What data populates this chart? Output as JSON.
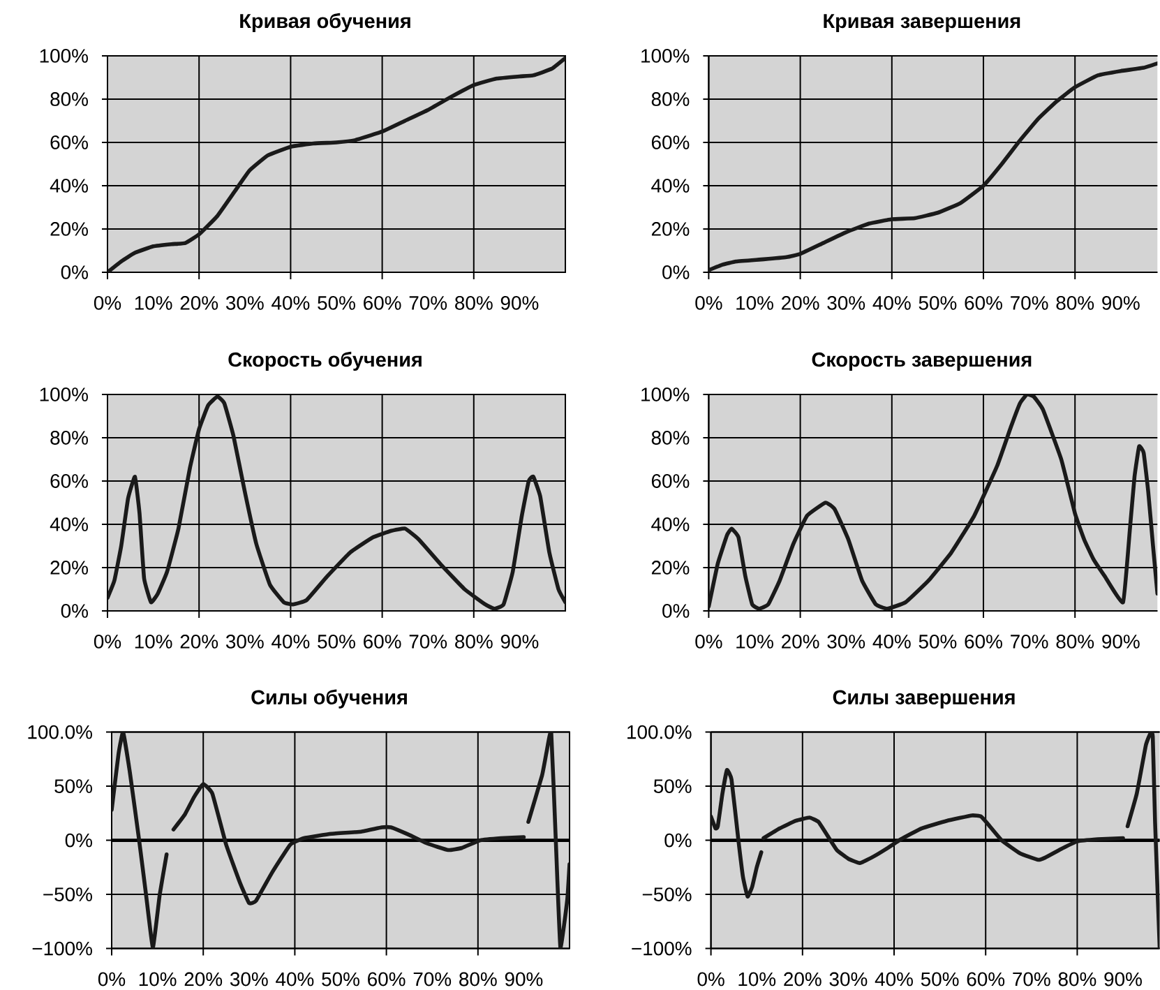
{
  "chart_data": [
    {
      "type": "line",
      "title": "Кривая обучения",
      "color": "#1a1a1a",
      "grid": true,
      "xlim": [
        0,
        100
      ],
      "ylim": [
        0,
        100
      ],
      "xticks": [
        {
          "value": 0,
          "label": "0%"
        },
        {
          "value": 10,
          "label": "10%"
        },
        {
          "value": 20,
          "label": "20%"
        },
        {
          "value": 30,
          "label": "30%"
        },
        {
          "value": 40,
          "label": "40%"
        },
        {
          "value": 50,
          "label": "50%"
        },
        {
          "value": 60,
          "label": "60%"
        },
        {
          "value": 70,
          "label": "70%"
        },
        {
          "value": 80,
          "label": "80%"
        },
        {
          "value": 90,
          "label": "90%"
        }
      ],
      "yticks": [
        {
          "value": 0,
          "label": "0%"
        },
        {
          "value": 20,
          "label": "20%"
        },
        {
          "value": 40,
          "label": "40%"
        },
        {
          "value": 60,
          "label": "60%"
        },
        {
          "value": 80,
          "label": "80%"
        },
        {
          "value": 100,
          "label": "100%"
        }
      ],
      "x": [
        0,
        3,
        6,
        10,
        14,
        17,
        20,
        24,
        28,
        31,
        35,
        40,
        45,
        50,
        54,
        60,
        65,
        70,
        75,
        80,
        85,
        90,
        93,
        97,
        100
      ],
      "values": [
        0,
        5,
        9,
        12,
        13,
        13.5,
        17.5,
        26,
        38,
        47,
        54,
        58,
        59.5,
        60,
        61,
        65,
        70,
        75,
        81,
        86.5,
        89.5,
        90.5,
        91,
        94,
        99
      ]
    },
    {
      "type": "line",
      "title": "Кривая завершения",
      "color": "#1a1a1a",
      "grid": true,
      "xlim": [
        0,
        98
      ],
      "ylim": [
        0,
        100
      ],
      "xticks": [
        {
          "value": 0,
          "label": "0%"
        },
        {
          "value": 10,
          "label": "10%"
        },
        {
          "value": 20,
          "label": "20%"
        },
        {
          "value": 30,
          "label": "30%"
        },
        {
          "value": 40,
          "label": "40%"
        },
        {
          "value": 50,
          "label": "50%"
        },
        {
          "value": 60,
          "label": "60%"
        },
        {
          "value": 70,
          "label": "70%"
        },
        {
          "value": 80,
          "label": "80%"
        },
        {
          "value": 90,
          "label": "90%"
        }
      ],
      "yticks": [
        {
          "value": 0,
          "label": "0%"
        },
        {
          "value": 20,
          "label": "20%"
        },
        {
          "value": 40,
          "label": "40%"
        },
        {
          "value": 60,
          "label": "60%"
        },
        {
          "value": 80,
          "label": "80%"
        },
        {
          "value": 100,
          "label": "100%"
        }
      ],
      "x": [
        0,
        3,
        6,
        12,
        17,
        20,
        25,
        30,
        35,
        40,
        45,
        50,
        55,
        60,
        64,
        68,
        72,
        76,
        80,
        85,
        90,
        95,
        98
      ],
      "values": [
        1,
        3.5,
        5,
        6,
        7,
        8.5,
        13.5,
        18.5,
        22.5,
        24.5,
        25,
        27.5,
        32,
        40,
        50,
        61,
        71,
        79,
        85.5,
        91,
        93,
        94.5,
        96.5
      ]
    },
    {
      "type": "line",
      "title": "Скорость обучения",
      "color": "#1a1a1a",
      "grid": true,
      "xlim": [
        0,
        100
      ],
      "ylim": [
        0,
        100
      ],
      "xticks": [
        {
          "value": 0,
          "label": "0%"
        },
        {
          "value": 10,
          "label": "10%"
        },
        {
          "value": 20,
          "label": "20%"
        },
        {
          "value": 30,
          "label": "30%"
        },
        {
          "value": 40,
          "label": "40%"
        },
        {
          "value": 50,
          "label": "50%"
        },
        {
          "value": 60,
          "label": "60%"
        },
        {
          "value": 70,
          "label": "70%"
        },
        {
          "value": 80,
          "label": "80%"
        },
        {
          "value": 90,
          "label": "90%"
        }
      ],
      "yticks": [
        {
          "value": 0,
          "label": "0%"
        },
        {
          "value": 20,
          "label": "20%"
        },
        {
          "value": 40,
          "label": "40%"
        },
        {
          "value": 60,
          "label": "60%"
        },
        {
          "value": 80,
          "label": "80%"
        },
        {
          "value": 100,
          "label": "100%"
        }
      ],
      "x": [
        0,
        1.5,
        3,
        4.5,
        6,
        7,
        8,
        9.5,
        11,
        13,
        15.5,
        18,
        20,
        22,
        24,
        25.5,
        27.5,
        30,
        32.5,
        35.5,
        38.5,
        40.5,
        43.5,
        48,
        53,
        58,
        62,
        65,
        68,
        73,
        78,
        82.5,
        84.5,
        86.5,
        88.5,
        90.5,
        92,
        93,
        94.5,
        96.5,
        98.5,
        100
      ],
      "values": [
        6,
        14,
        30,
        52,
        62,
        45,
        15,
        4,
        8,
        18,
        38,
        66,
        84,
        95,
        99,
        96,
        81,
        55,
        31,
        12,
        4,
        3,
        5,
        16,
        27,
        34,
        37,
        38,
        33,
        21,
        10,
        3,
        1,
        3,
        18,
        44,
        60,
        62,
        53,
        27,
        10,
        4
      ]
    },
    {
      "type": "line",
      "title": "Скорость завершения",
      "color": "#1a1a1a",
      "grid": true,
      "xlim": [
        0,
        98
      ],
      "ylim": [
        0,
        100
      ],
      "xticks": [
        {
          "value": 0,
          "label": "0%"
        },
        {
          "value": 10,
          "label": "10%"
        },
        {
          "value": 20,
          "label": "20%"
        },
        {
          "value": 30,
          "label": "30%"
        },
        {
          "value": 40,
          "label": "40%"
        },
        {
          "value": 50,
          "label": "50%"
        },
        {
          "value": 60,
          "label": "60%"
        },
        {
          "value": 70,
          "label": "70%"
        },
        {
          "value": 80,
          "label": "80%"
        },
        {
          "value": 90,
          "label": "90%"
        }
      ],
      "yticks": [
        {
          "value": 0,
          "label": "0%"
        },
        {
          "value": 20,
          "label": "20%"
        },
        {
          "value": 40,
          "label": "40%"
        },
        {
          "value": 60,
          "label": "60%"
        },
        {
          "value": 80,
          "label": "80%"
        },
        {
          "value": 100,
          "label": "100%"
        }
      ],
      "x": [
        0,
        2,
        4,
        5,
        6.5,
        8,
        9.5,
        11,
        13,
        15.5,
        18.5,
        21.5,
        25.5,
        27.5,
        30.5,
        33.5,
        36.5,
        39,
        43,
        48,
        53,
        58,
        63,
        66,
        68,
        69.5,
        71,
        73,
        77,
        80,
        82,
        84,
        86.5,
        90.5,
        92,
        93,
        94,
        95,
        96,
        97,
        98
      ],
      "values": [
        2,
        22,
        35,
        38,
        34,
        16,
        3,
        1,
        3,
        14,
        31,
        44,
        50,
        47,
        33,
        14,
        3,
        1,
        4,
        14,
        27,
        44,
        67,
        85,
        96,
        100,
        99,
        93,
        70,
        45,
        33,
        24,
        16,
        4,
        38,
        62,
        76,
        73,
        55,
        31,
        8
      ]
    },
    {
      "type": "line",
      "title": "Силы обучения",
      "color": "#1a1a1a",
      "grid": true,
      "xlim": [
        0,
        100
      ],
      "ylim": [
        -100,
        100
      ],
      "xticks": [
        {
          "value": 0,
          "label": "0%"
        },
        {
          "value": 10,
          "label": "10%"
        },
        {
          "value": 20,
          "label": "20%"
        },
        {
          "value": 30,
          "label": "30%"
        },
        {
          "value": 40,
          "label": "40%"
        },
        {
          "value": 50,
          "label": "50%"
        },
        {
          "value": 60,
          "label": "60%"
        },
        {
          "value": 70,
          "label": "70%"
        },
        {
          "value": 80,
          "label": "80%"
        },
        {
          "value": 90,
          "label": "90%"
        }
      ],
      "yticks": [
        {
          "value": -100,
          "label": "−100%"
        },
        {
          "value": -50,
          "label": "−50%"
        },
        {
          "value": 0,
          "label": "0%"
        },
        {
          "value": 50,
          "label": "50%"
        },
        {
          "value": 100,
          "label": "100.0%"
        }
      ],
      "ref_lines": [
        {
          "axis": "y",
          "value": 0
        }
      ],
      "x": [
        0,
        1.5,
        2.5,
        4,
        6,
        7.5,
        9,
        10.5,
        12,
        12.7,
        13.5,
        16,
        18,
        20,
        22,
        25,
        28,
        30,
        31.5,
        35,
        39,
        42,
        48,
        54.5,
        59,
        61,
        65,
        69,
        73.5,
        76.5,
        80.5,
        85,
        90,
        90.5,
        91,
        94,
        95,
        96,
        97,
        98,
        99.5,
        100
      ],
      "values": [
        28,
        80,
        100,
        62,
        0,
        -50,
        -99,
        -50,
        -13,
        null,
        10,
        24,
        40,
        52,
        43,
        -4,
        -39,
        -58,
        -56,
        -30,
        -4,
        2,
        6,
        8,
        12,
        12,
        5,
        -3,
        -9,
        -7,
        0,
        2,
        3,
        null,
        17,
        60,
        82,
        100,
        0,
        -99,
        -55,
        -22
      ]
    },
    {
      "type": "line",
      "title": "Силы завершения",
      "color": "#1a1a1a",
      "grid": true,
      "xlim": [
        0,
        98
      ],
      "ylim": [
        -100,
        100
      ],
      "xticks": [
        {
          "value": 0,
          "label": "0%"
        },
        {
          "value": 10,
          "label": "10%"
        },
        {
          "value": 20,
          "label": "20%"
        },
        {
          "value": 30,
          "label": "30%"
        },
        {
          "value": 40,
          "label": "40%"
        },
        {
          "value": 50,
          "label": "50%"
        },
        {
          "value": 60,
          "label": "60%"
        },
        {
          "value": 70,
          "label": "70%"
        },
        {
          "value": 80,
          "label": "80%"
        },
        {
          "value": 90,
          "label": "90%"
        }
      ],
      "yticks": [
        {
          "value": -100,
          "label": "−100%"
        },
        {
          "value": -50,
          "label": "−50%"
        },
        {
          "value": 0,
          "label": "0%"
        },
        {
          "value": 50,
          "label": "50%"
        },
        {
          "value": 100,
          "label": "100.0%"
        }
      ],
      "ref_lines": [
        {
          "axis": "y",
          "value": 0
        }
      ],
      "x": [
        0,
        1,
        1.5,
        2.5,
        3.5,
        4.5,
        6,
        7,
        8,
        9,
        10,
        11,
        11.2,
        11.5,
        15,
        18.5,
        21.5,
        23.5,
        25.5,
        27.5,
        30,
        32.5,
        35.5,
        39,
        41.5,
        46,
        51.5,
        57,
        59,
        60.5,
        63.5,
        67.5,
        71.5,
        73,
        76.5,
        80,
        84.5,
        90,
        90.4,
        91,
        93,
        95,
        96,
        96.5,
        97,
        98
      ],
      "values": [
        22,
        11,
        13,
        43,
        65,
        56,
        0,
        -34,
        -52,
        -43,
        -25,
        -11,
        null,
        2,
        11,
        18,
        21,
        17,
        4,
        -9,
        -17,
        -21,
        -15,
        -6,
        1,
        11,
        18,
        23,
        22,
        15,
        0,
        -12,
        -18,
        -16,
        -8,
        -1,
        1,
        2,
        null,
        13,
        43,
        88,
        99,
        96,
        17,
        -99
      ]
    }
  ]
}
